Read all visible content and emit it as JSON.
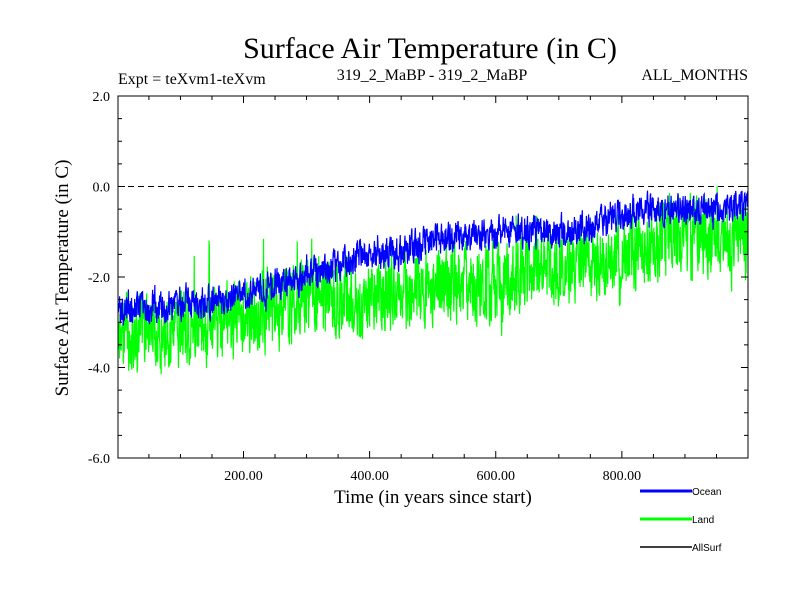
{
  "chart_data": {
    "type": "line",
    "title": "Surface Air Temperature (in C)",
    "subtitle_left": "Expt = teXvm1-teXvm",
    "subtitle_center": "319_2_MaBP - 319_2_MaBP",
    "subtitle_right": "ALL_MONTHS",
    "xlabel": "Time (in years since start)",
    "ylabel": "Surface Air Temperature (in C)",
    "xlim": [
      1,
      1000
    ],
    "ylim": [
      -6.0,
      2.0
    ],
    "x_ticks": [
      200,
      400,
      600,
      800
    ],
    "x_tick_labels": [
      "200.00",
      "400.00",
      "600.00",
      "800.00"
    ],
    "y_ticks": [
      -6.0,
      -4.0,
      -2.0,
      0.0,
      2.0
    ],
    "y_tick_labels": [
      "-6.0",
      "-4.0",
      "-2.0",
      "0.0",
      "2.0"
    ],
    "reference_line": 0.0,
    "legend_position": "bottom-right, outside plot",
    "series": [
      {
        "name": "Land",
        "color": "#00ff00",
        "x": [
          1,
          50,
          100,
          150,
          200,
          250,
          300,
          350,
          400,
          450,
          500,
          550,
          600,
          650,
          700,
          750,
          800,
          850,
          900,
          950,
          1000
        ],
        "mean": [
          -3.3,
          -3.2,
          -3.1,
          -3.0,
          -2.85,
          -2.7,
          -2.55,
          -2.4,
          -2.5,
          -2.3,
          -2.2,
          -2.2,
          -2.1,
          -1.9,
          -1.8,
          -1.6,
          -1.5,
          -1.25,
          -1.15,
          -1.1,
          -1.0
        ],
        "spread": 0.85
      },
      {
        "name": "Ocean",
        "color": "#0000ff",
        "x": [
          1,
          50,
          100,
          150,
          200,
          250,
          300,
          350,
          400,
          450,
          500,
          550,
          600,
          650,
          700,
          750,
          800,
          850,
          900,
          950,
          1000
        ],
        "mean": [
          -2.7,
          -2.65,
          -2.65,
          -2.55,
          -2.4,
          -2.2,
          -2.0,
          -1.7,
          -1.5,
          -1.45,
          -1.2,
          -1.1,
          -1.0,
          -1.0,
          -1.0,
          -0.9,
          -0.6,
          -0.5,
          -0.5,
          -0.5,
          -0.4
        ],
        "spread": 0.35
      },
      {
        "name": "AllSurf",
        "color": "#000000",
        "x": [],
        "mean": [],
        "spread": 0
      }
    ]
  }
}
